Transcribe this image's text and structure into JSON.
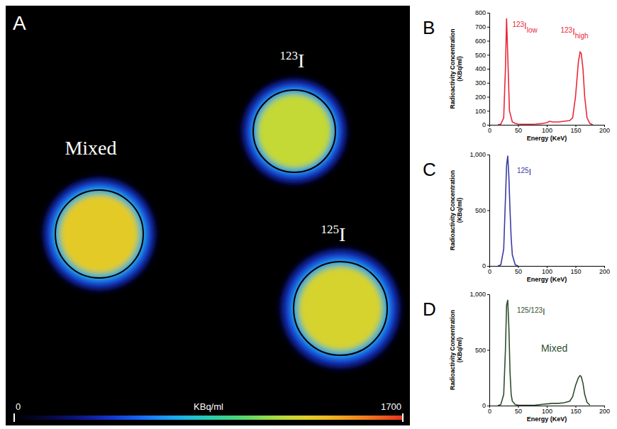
{
  "chart_data": [
    {
      "type": "image",
      "panel": "A",
      "regions": [
        {
          "label": "Mixed",
          "value": 1300
        },
        {
          "label": "123I",
          "value": 1200
        },
        {
          "label": "125I",
          "value": 1250
        }
      ],
      "colorbar": {
        "lim": [
          0,
          1700
        ],
        "ticks": [
          0,
          1700
        ],
        "label": "KBq/ml"
      }
    },
    {
      "type": "line",
      "panel": "B",
      "color": "#e8283a",
      "ylabel": "Radioactivity Concentration (KBq/ml)",
      "xlabel": "Energy (KeV)",
      "x": [
        15,
        20,
        25,
        28,
        30,
        32,
        35,
        40,
        45,
        50,
        60,
        70,
        80,
        90,
        100,
        105,
        110,
        120,
        130,
        140,
        145,
        150,
        155,
        158,
        160,
        163,
        166,
        170,
        175,
        180
      ],
      "values": [
        0,
        5,
        50,
        400,
        760,
        500,
        100,
        20,
        10,
        5,
        3,
        3,
        5,
        8,
        15,
        25,
        20,
        20,
        25,
        30,
        50,
        200,
        450,
        520,
        510,
        400,
        200,
        50,
        10,
        0
      ],
      "xlim": [
        0,
        200
      ],
      "xticks": [
        0,
        50,
        100,
        150,
        200
      ],
      "ylim": [
        0,
        800
      ],
      "yticks": [
        0,
        100,
        200,
        300,
        400,
        500,
        600,
        700,
        800
      ],
      "annotations": [
        {
          "text": "123I",
          "sub": "low"
        },
        {
          "text": "123I",
          "sub": "high"
        }
      ]
    },
    {
      "type": "line",
      "panel": "C",
      "color": "#3b3aa6",
      "ylabel": "Radioactivity Concentration (KBq/ml)",
      "xlabel": "Energy (KeV)",
      "x": [
        15,
        20,
        25,
        28,
        30,
        32,
        34,
        36,
        38,
        40,
        45,
        50
      ],
      "values": [
        0,
        10,
        150,
        600,
        900,
        990,
        800,
        500,
        250,
        100,
        10,
        0
      ],
      "xlim": [
        0,
        200
      ],
      "xticks": [
        0,
        50,
        100,
        150,
        200
      ],
      "ylim": [
        0,
        1000
      ],
      "yticks": [
        0,
        500,
        {
          "value": 1000,
          "label": "1,000"
        }
      ],
      "annotations": [
        {
          "text": "125I"
        }
      ]
    },
    {
      "type": "line",
      "panel": "D",
      "color": "#2f4f2f",
      "ylabel": "Radioactivity Concentration (KBq/ml)",
      "xlabel": "Energy (KeV)",
      "x": [
        15,
        20,
        25,
        28,
        30,
        32,
        34,
        36,
        38,
        40,
        45,
        50,
        60,
        80,
        100,
        110,
        120,
        130,
        140,
        145,
        150,
        155,
        158,
        160,
        163,
        166,
        170,
        175
      ],
      "values": [
        0,
        10,
        100,
        500,
        900,
        950,
        700,
        300,
        100,
        40,
        10,
        5,
        3,
        5,
        15,
        20,
        20,
        25,
        40,
        80,
        180,
        250,
        270,
        260,
        200,
        100,
        30,
        5
      ],
      "xlim": [
        0,
        200
      ],
      "xticks": [
        0,
        50,
        100,
        150,
        200
      ],
      "ylim": [
        0,
        1000
      ],
      "yticks": [
        0,
        500,
        {
          "value": 1000,
          "label": "1,000"
        }
      ],
      "annotations": [
        {
          "text": "125/123I"
        },
        {
          "text": "Mixed"
        }
      ]
    }
  ]
}
